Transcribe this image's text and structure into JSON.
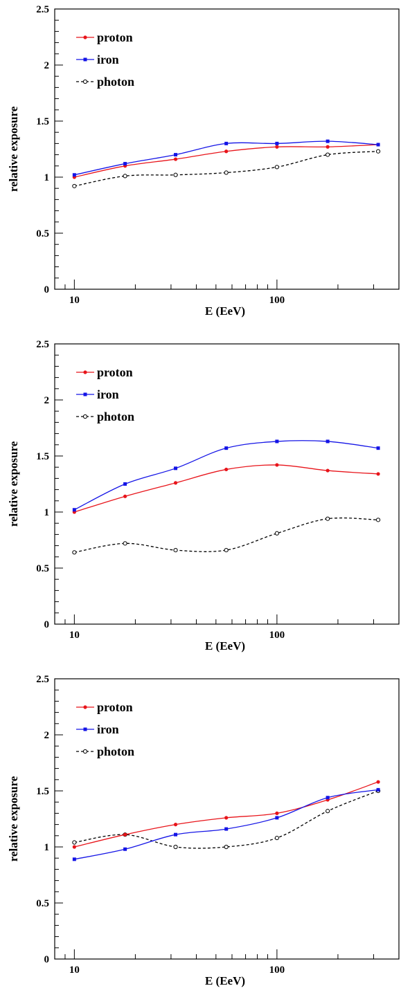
{
  "chart_data": [
    {
      "type": "line",
      "xlabel": "E (EeV)",
      "ylabel": "relative exposure",
      "x_scale": "log",
      "xlim": [
        8,
        400
      ],
      "ylim": [
        0,
        2.5
      ],
      "x_ticks": [
        10,
        100
      ],
      "x_tick_labels": [
        "10",
        "100"
      ],
      "y_ticks": [
        0,
        0.5,
        1,
        1.5,
        2,
        2.5
      ],
      "y_tick_labels": [
        "0",
        "0.5",
        "1",
        "1.5",
        "2",
        "2.5"
      ],
      "legend_position": "top-left",
      "x": [
        10,
        17.8,
        31.6,
        56.2,
        100,
        178,
        316
      ],
      "series": [
        {
          "name": "proton",
          "color": "#e8141a",
          "line_style": "solid",
          "marker": "dot",
          "values": [
            1.0,
            1.1,
            1.16,
            1.23,
            1.27,
            1.27,
            1.29
          ]
        },
        {
          "name": "iron",
          "color": "#1414e6",
          "line_style": "solid",
          "marker": "square",
          "values": [
            1.02,
            1.12,
            1.2,
            1.3,
            1.3,
            1.32,
            1.29
          ]
        },
        {
          "name": "photon",
          "color": "#000000",
          "line_style": "dashed",
          "marker": "open-circle",
          "values": [
            0.92,
            1.01,
            1.02,
            1.04,
            1.09,
            1.2,
            1.23
          ]
        }
      ]
    },
    {
      "type": "line",
      "xlabel": "E (EeV)",
      "ylabel": "relative exposure",
      "x_scale": "log",
      "xlim": [
        8,
        400
      ],
      "ylim": [
        0,
        2.5
      ],
      "x_ticks": [
        10,
        100
      ],
      "x_tick_labels": [
        "10",
        "100"
      ],
      "y_ticks": [
        0,
        0.5,
        1,
        1.5,
        2,
        2.5
      ],
      "y_tick_labels": [
        "0",
        "0.5",
        "1",
        "1.5",
        "2",
        "2.5"
      ],
      "legend_position": "top-left",
      "x": [
        10,
        17.8,
        31.6,
        56.2,
        100,
        178,
        316
      ],
      "series": [
        {
          "name": "proton",
          "color": "#e8141a",
          "line_style": "solid",
          "marker": "dot",
          "values": [
            1.0,
            1.14,
            1.26,
            1.38,
            1.42,
            1.37,
            1.34
          ]
        },
        {
          "name": "iron",
          "color": "#1414e6",
          "line_style": "solid",
          "marker": "square",
          "values": [
            1.02,
            1.25,
            1.39,
            1.57,
            1.63,
            1.63,
            1.57
          ]
        },
        {
          "name": "photon",
          "color": "#000000",
          "line_style": "dashed",
          "marker": "open-circle",
          "values": [
            0.64,
            0.72,
            0.66,
            0.66,
            0.81,
            0.94,
            0.93
          ]
        }
      ]
    },
    {
      "type": "line",
      "xlabel": "E (EeV)",
      "ylabel": "relative exposure",
      "x_scale": "log",
      "xlim": [
        8,
        400
      ],
      "ylim": [
        0,
        2.5
      ],
      "x_ticks": [
        10,
        100
      ],
      "x_tick_labels": [
        "10",
        "100"
      ],
      "y_ticks": [
        0,
        0.5,
        1,
        1.5,
        2,
        2.5
      ],
      "y_tick_labels": [
        "0",
        "0.5",
        "1",
        "1.5",
        "2",
        "2.5"
      ],
      "legend_position": "top-left",
      "x": [
        10,
        17.8,
        31.6,
        56.2,
        100,
        178,
        316
      ],
      "series": [
        {
          "name": "proton",
          "color": "#e8141a",
          "line_style": "solid",
          "marker": "dot",
          "values": [
            1.0,
            1.11,
            1.2,
            1.26,
            1.3,
            1.42,
            1.58
          ]
        },
        {
          "name": "iron",
          "color": "#1414e6",
          "line_style": "solid",
          "marker": "square",
          "values": [
            0.89,
            0.98,
            1.11,
            1.16,
            1.26,
            1.44,
            1.51
          ]
        },
        {
          "name": "photon",
          "color": "#000000",
          "line_style": "dashed",
          "marker": "open-circle",
          "values": [
            1.04,
            1.11,
            1.0,
            1.0,
            1.08,
            1.32,
            1.5
          ]
        }
      ]
    }
  ]
}
